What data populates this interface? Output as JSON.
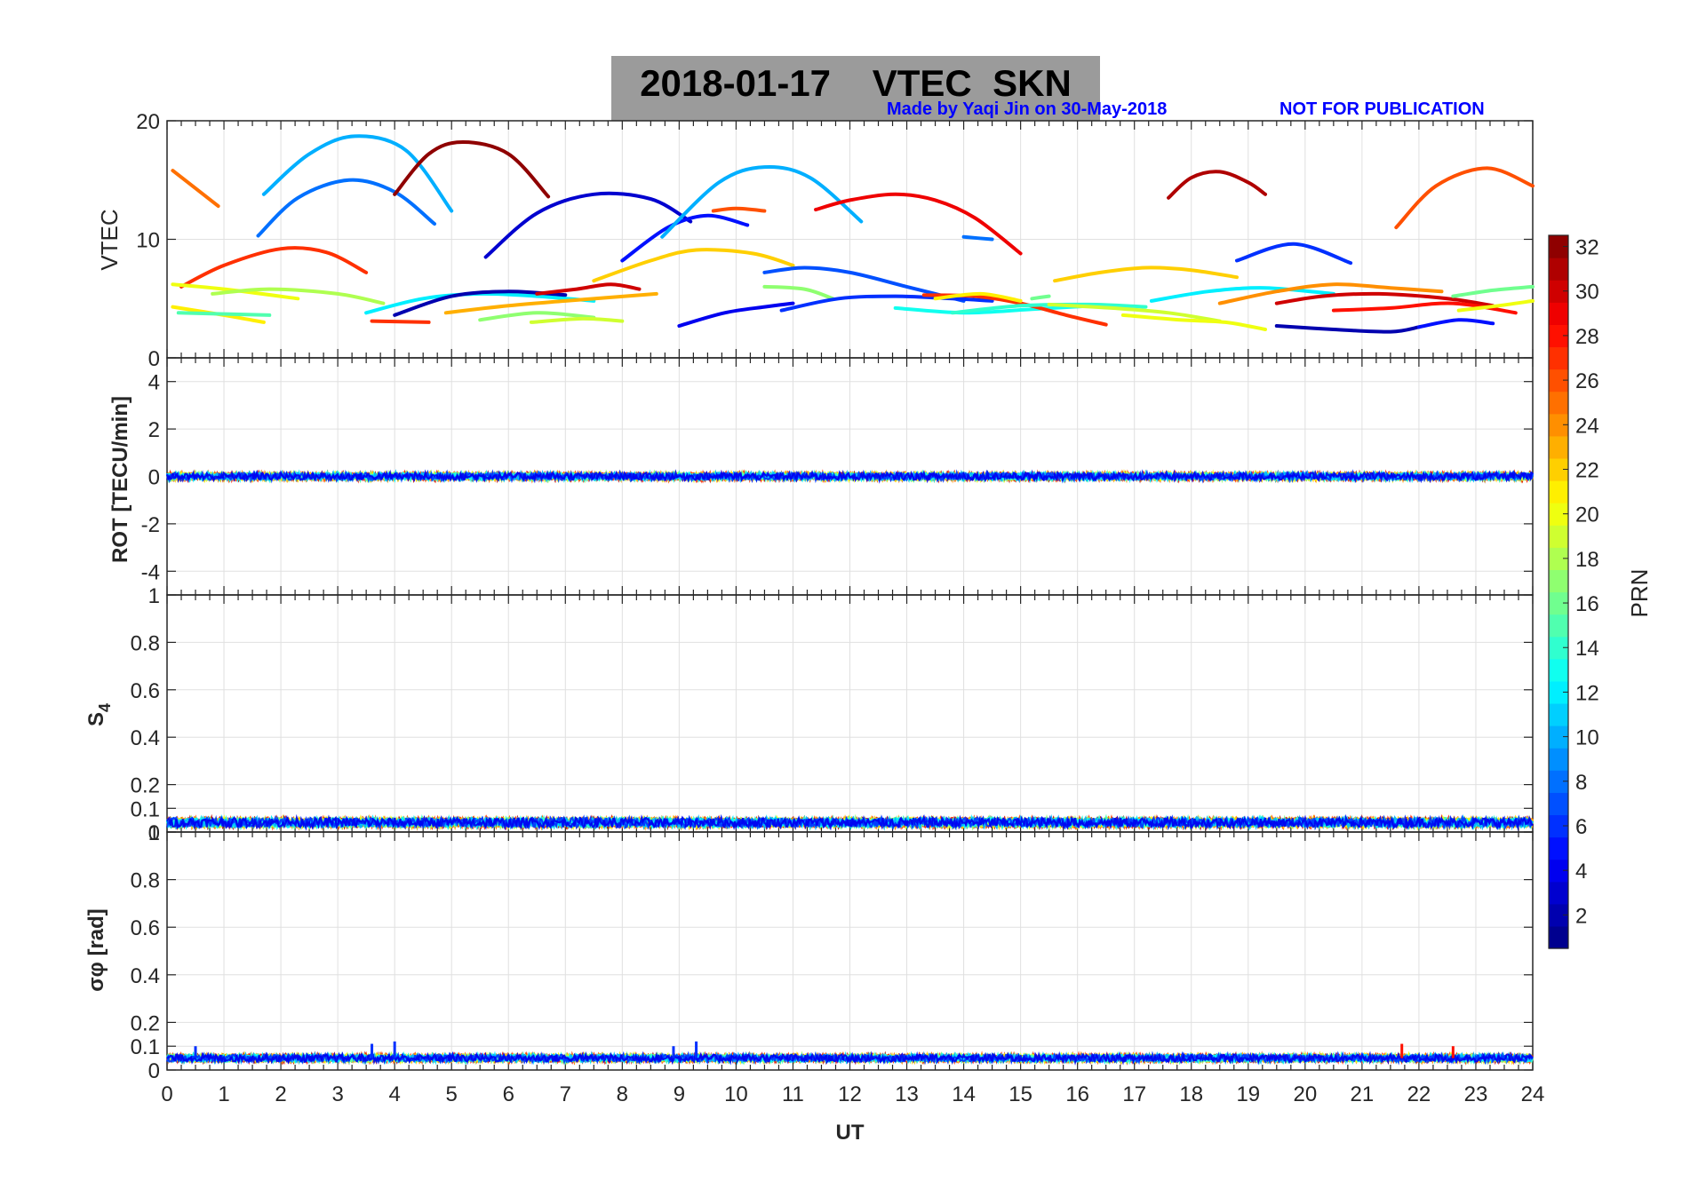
{
  "title": {
    "date": "2018-01-17",
    "quantity": "VTEC",
    "station": "SKN"
  },
  "credit": "Made by Yaqi Jin on 30-May-2018",
  "notice": "NOT FOR PUBLICATION",
  "colors": {
    "title_bg": "#9b9b9b",
    "notice": "#0000ff",
    "grid": "#e0e0e0",
    "axis": "#262626"
  },
  "chart_data": [
    {
      "id": "vtec",
      "type": "line",
      "ylabel": "VTEC",
      "xlim": [
        0,
        24
      ],
      "ylim": [
        0,
        20
      ],
      "yticks": [
        0,
        10,
        20
      ],
      "series": [
        {
          "prn": 25,
          "x": [
            0.1,
            0.9
          ],
          "y": [
            15.8,
            12.8
          ]
        },
        {
          "prn": 27,
          "x": [
            0.25,
            1.0,
            2.0,
            2.8,
            3.5
          ],
          "y": [
            6.0,
            7.8,
            9.2,
            8.9,
            7.2
          ]
        },
        {
          "prn": 10,
          "x": [
            1.7,
            2.5,
            3.3,
            4.2,
            5.0
          ],
          "y": [
            13.8,
            17.2,
            18.7,
            17.5,
            12.4
          ]
        },
        {
          "prn": 8,
          "x": [
            1.6,
            2.3,
            3.2,
            4.0,
            4.7
          ],
          "y": [
            10.3,
            13.5,
            15.0,
            14.0,
            11.3
          ]
        },
        {
          "prn": 32,
          "x": [
            4.0,
            4.6,
            5.2,
            6.0,
            6.7
          ],
          "y": [
            13.8,
            17.2,
            18.2,
            17.2,
            13.6
          ]
        },
        {
          "prn": 3,
          "x": [
            5.6,
            6.5,
            7.5,
            8.5,
            9.2
          ],
          "y": [
            8.5,
            12.2,
            13.8,
            13.4,
            11.5
          ]
        },
        {
          "prn": 5,
          "x": [
            8.0,
            8.8,
            9.5,
            10.2
          ],
          "y": [
            8.2,
            11.0,
            12.0,
            11.2
          ]
        },
        {
          "prn": 10,
          "x": [
            8.7,
            9.7,
            10.5,
            11.3,
            12.2
          ],
          "y": [
            10.2,
            14.8,
            16.1,
            15.2,
            11.5
          ]
        },
        {
          "prn": 26,
          "x": [
            9.6,
            10.0,
            10.5
          ],
          "y": [
            12.4,
            12.6,
            12.4
          ]
        },
        {
          "prn": 29,
          "x": [
            11.4,
            12.0,
            12.8,
            13.5,
            14.2,
            15.0
          ],
          "y": [
            12.5,
            13.3,
            13.8,
            13.3,
            11.8,
            8.8
          ]
        },
        {
          "prn": 8,
          "x": [
            14.0,
            14.5
          ],
          "y": [
            10.2,
            10.0
          ]
        },
        {
          "prn": 31,
          "x": [
            17.6,
            18.0,
            18.5,
            19.0,
            19.3
          ],
          "y": [
            13.5,
            15.2,
            15.7,
            14.8,
            13.8
          ]
        },
        {
          "prn": 26,
          "x": [
            21.6,
            22.3,
            23.2,
            24.0
          ],
          "y": [
            11.0,
            14.5,
            16.0,
            14.5
          ]
        },
        {
          "prn": 6,
          "x": [
            18.8,
            19.8,
            20.8
          ],
          "y": [
            8.2,
            9.6,
            8.0
          ]
        },
        {
          "prn": 22,
          "x": [
            7.5,
            8.5,
            9.3,
            10.3,
            11.0
          ],
          "y": [
            6.5,
            8.2,
            9.1,
            8.8,
            7.8
          ]
        },
        {
          "prn": 7,
          "x": [
            10.5,
            11.2,
            12.0,
            13.0,
            14.0
          ],
          "y": [
            7.2,
            7.6,
            7.2,
            6.0,
            4.8
          ]
        },
        {
          "prn": 22,
          "x": [
            15.6,
            16.4,
            17.2,
            18.0,
            18.8
          ],
          "y": [
            6.5,
            7.2,
            7.6,
            7.4,
            6.8
          ]
        },
        {
          "prn": 20,
          "x": [
            0.1,
            1.0,
            2.3
          ],
          "y": [
            6.2,
            5.8,
            5.0
          ]
        },
        {
          "prn": 18,
          "x": [
            0.8,
            1.8,
            3.0,
            3.8
          ],
          "y": [
            5.4,
            5.8,
            5.4,
            4.6
          ]
        },
        {
          "prn": 21,
          "x": [
            0.1,
            1.0,
            1.7
          ],
          "y": [
            4.3,
            3.6,
            3.0
          ]
        },
        {
          "prn": 15,
          "x": [
            0.2,
            1.8
          ],
          "y": [
            3.8,
            3.6
          ]
        },
        {
          "prn": 12,
          "x": [
            3.5,
            4.5,
            5.5,
            6.5,
            7.5
          ],
          "y": [
            3.8,
            5.0,
            5.4,
            5.2,
            4.8
          ]
        },
        {
          "prn": 2,
          "x": [
            4.0,
            5.0,
            6.0,
            7.0
          ],
          "y": [
            3.6,
            5.2,
            5.6,
            5.3
          ]
        },
        {
          "prn": 30,
          "x": [
            6.5,
            7.2,
            7.8,
            8.3
          ],
          "y": [
            5.4,
            5.8,
            6.2,
            5.8
          ]
        },
        {
          "prn": 27,
          "x": [
            3.6,
            4.6
          ],
          "y": [
            3.1,
            3.0
          ]
        },
        {
          "prn": 23,
          "x": [
            4.9,
            6.0,
            7.0,
            8.6
          ],
          "y": [
            3.8,
            4.4,
            4.8,
            5.4
          ]
        },
        {
          "prn": 17,
          "x": [
            5.5,
            6.5,
            7.5
          ],
          "y": [
            3.2,
            3.8,
            3.4
          ]
        },
        {
          "prn": 19,
          "x": [
            6.4,
            7.3,
            8.0
          ],
          "y": [
            3.0,
            3.3,
            3.1
          ]
        },
        {
          "prn": 4,
          "x": [
            9.0,
            9.8,
            10.5,
            11.0
          ],
          "y": [
            2.7,
            3.8,
            4.3,
            4.6
          ]
        },
        {
          "prn": 17,
          "x": [
            10.5,
            11.2,
            11.7
          ],
          "y": [
            6.0,
            5.8,
            5.0
          ]
        },
        {
          "prn": 6,
          "x": [
            10.8,
            11.8,
            12.8,
            13.8,
            14.5
          ],
          "y": [
            4.0,
            5.0,
            5.2,
            5.0,
            4.8
          ]
        },
        {
          "prn": 13,
          "x": [
            12.8,
            14.0,
            15.2,
            16.3
          ],
          "y": [
            4.2,
            3.8,
            4.1,
            4.4
          ]
        },
        {
          "prn": 27,
          "x": [
            13.3,
            14.2,
            15.0,
            15.8,
            16.5
          ],
          "y": [
            5.3,
            5.2,
            4.6,
            3.6,
            2.8
          ]
        },
        {
          "prn": 21,
          "x": [
            13.5,
            14.3,
            15.0
          ],
          "y": [
            5.0,
            5.4,
            4.8
          ]
        },
        {
          "prn": 16,
          "x": [
            15.2,
            15.5
          ],
          "y": [
            5.0,
            5.2
          ]
        },
        {
          "prn": 14,
          "x": [
            13.8,
            15.0,
            16.2,
            17.2
          ],
          "y": [
            3.8,
            4.4,
            4.5,
            4.3
          ]
        },
        {
          "prn": 19,
          "x": [
            15.5,
            16.6,
            17.6,
            18.5
          ],
          "y": [
            4.5,
            4.2,
            3.8,
            3.1
          ]
        },
        {
          "prn": 20,
          "x": [
            16.8,
            17.8,
            18.6,
            19.3
          ],
          "y": [
            3.6,
            3.2,
            3.0,
            2.4
          ]
        },
        {
          "prn": 12,
          "x": [
            17.3,
            18.3,
            19.3,
            20.5
          ],
          "y": [
            4.8,
            5.6,
            5.9,
            5.4
          ]
        },
        {
          "prn": 24,
          "x": [
            18.5,
            19.5,
            20.5,
            21.5,
            22.4
          ],
          "y": [
            4.6,
            5.6,
            6.2,
            5.9,
            5.6
          ]
        },
        {
          "prn": 30,
          "x": [
            19.5,
            20.3,
            21.3,
            22.5,
            23.3
          ],
          "y": [
            4.6,
            5.2,
            5.4,
            5.0,
            4.4
          ]
        },
        {
          "prn": 28,
          "x": [
            20.5,
            21.5,
            22.6,
            23.7
          ],
          "y": [
            4.0,
            4.2,
            4.6,
            3.8
          ]
        },
        {
          "prn": 2,
          "x": [
            19.5,
            20.5,
            21.5,
            22.0
          ],
          "y": [
            2.7,
            2.4,
            2.2,
            2.6
          ]
        },
        {
          "prn": 5,
          "x": [
            22.0,
            22.7,
            23.3
          ],
          "y": [
            2.6,
            3.2,
            2.9
          ]
        },
        {
          "prn": 16,
          "x": [
            22.6,
            23.3,
            24.0
          ],
          "y": [
            5.2,
            5.7,
            6.0
          ]
        },
        {
          "prn": 20,
          "x": [
            22.7,
            23.4,
            24.0
          ],
          "y": [
            4.0,
            4.4,
            4.8
          ]
        }
      ]
    },
    {
      "id": "rot",
      "type": "scatter",
      "ylabel": "ROT [TECU/min]",
      "xlim": [
        0,
        24
      ],
      "ylim": [
        -5,
        5
      ],
      "yticks": [
        -4,
        -2,
        0,
        2,
        4
      ],
      "note": "all traces near 0 with noise of about ±0.15 TECU/min over 0-24 UT",
      "level": 0,
      "spread": 0.15
    },
    {
      "id": "s4",
      "type": "scatter",
      "ylabel": "S4",
      "xlim": [
        0,
        24
      ],
      "ylim": [
        0,
        1
      ],
      "yticks": [
        0,
        0.1,
        0.2,
        0.4,
        0.6,
        0.8,
        1
      ],
      "level": 0.04,
      "spread": 0.02
    },
    {
      "id": "sigma_phi",
      "type": "scatter",
      "ylabel": "σφ [rad]",
      "xlim": [
        0,
        24
      ],
      "ylim": [
        0,
        1
      ],
      "yticks": [
        0,
        0.1,
        0.2,
        0.4,
        0.6,
        0.8,
        1
      ],
      "xticks": [
        0,
        1,
        2,
        3,
        4,
        5,
        6,
        7,
        8,
        9,
        10,
        11,
        12,
        13,
        14,
        15,
        16,
        17,
        18,
        19,
        20,
        21,
        22,
        23,
        24
      ],
      "xlabel": "UT",
      "level": 0.05,
      "spread": 0.015,
      "spikes": [
        {
          "x": 0.5,
          "y": 0.1
        },
        {
          "x": 3.6,
          "y": 0.11
        },
        {
          "x": 4.0,
          "y": 0.12
        },
        {
          "x": 8.9,
          "y": 0.1
        },
        {
          "x": 9.3,
          "y": 0.12
        },
        {
          "x": 21.7,
          "y": 0.11
        },
        {
          "x": 22.6,
          "y": 0.1
        }
      ]
    }
  ],
  "colorbar": {
    "label": "PRN",
    "min": 1,
    "max": 32,
    "ticks": [
      2,
      4,
      6,
      8,
      10,
      12,
      14,
      16,
      18,
      20,
      22,
      24,
      26,
      28,
      30,
      32
    ],
    "colormap": "jet"
  }
}
